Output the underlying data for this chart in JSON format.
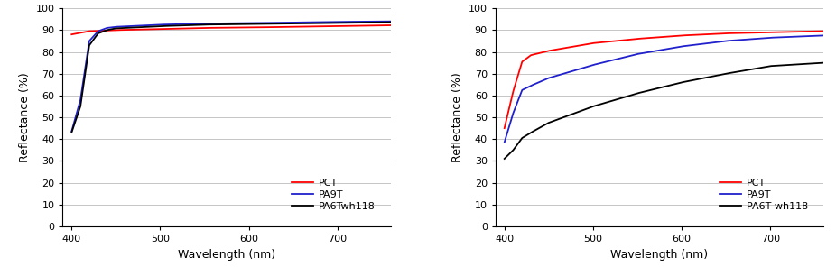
{
  "left_chart": {
    "xlabel": "Wavelength (nm)",
    "ylabel": "Reflectance (%)",
    "xlim": [
      390,
      760
    ],
    "ylim": [
      0,
      100
    ],
    "yticks": [
      0,
      10,
      20,
      30,
      40,
      50,
      60,
      70,
      80,
      90,
      100
    ],
    "xticks": [
      400,
      500,
      600,
      700
    ],
    "legend_labels": [
      "PCT",
      "PA9T",
      "PA6Twh118"
    ],
    "colors": [
      "#ff0000",
      "#2020cc",
      "#000000"
    ],
    "pct_points": [
      [
        400,
        88.0
      ],
      [
        420,
        89.5
      ],
      [
        450,
        90.0
      ],
      [
        500,
        90.5
      ],
      [
        550,
        91.0
      ],
      [
        600,
        91.2
      ],
      [
        650,
        91.5
      ],
      [
        700,
        91.8
      ],
      [
        760,
        92.2
      ]
    ],
    "pa9t_points": [
      [
        400,
        43.5
      ],
      [
        410,
        58.0
      ],
      [
        420,
        85.0
      ],
      [
        430,
        89.5
      ],
      [
        440,
        91.0
      ],
      [
        450,
        91.5
      ],
      [
        500,
        92.5
      ],
      [
        550,
        93.0
      ],
      [
        600,
        93.2
      ],
      [
        650,
        93.5
      ],
      [
        700,
        93.8
      ],
      [
        760,
        94.0
      ]
    ],
    "pa6t_points": [
      [
        400,
        43.0
      ],
      [
        410,
        55.0
      ],
      [
        420,
        83.0
      ],
      [
        430,
        88.5
      ],
      [
        440,
        90.0
      ],
      [
        450,
        90.8
      ],
      [
        500,
        91.8
      ],
      [
        550,
        92.5
      ],
      [
        600,
        92.8
      ],
      [
        650,
        93.0
      ],
      [
        700,
        93.3
      ],
      [
        760,
        93.6
      ]
    ]
  },
  "right_chart": {
    "xlabel": "Wavelength (nm)",
    "ylabel": "Reflectance (%)",
    "xlim": [
      390,
      760
    ],
    "ylim": [
      0,
      100
    ],
    "yticks": [
      0,
      10,
      20,
      30,
      40,
      50,
      60,
      70,
      80,
      90,
      100
    ],
    "xticks": [
      400,
      500,
      600,
      700
    ],
    "legend_labels": [
      "PCT",
      "PA9T",
      "PA6T wh118"
    ],
    "colors": [
      "#ff0000",
      "#2020cc",
      "#000000"
    ],
    "pct_points": [
      [
        400,
        45.0
      ],
      [
        410,
        62.0
      ],
      [
        420,
        75.5
      ],
      [
        430,
        78.5
      ],
      [
        450,
        80.5
      ],
      [
        500,
        84.0
      ],
      [
        550,
        86.0
      ],
      [
        600,
        87.5
      ],
      [
        650,
        88.5
      ],
      [
        700,
        89.0
      ],
      [
        760,
        89.5
      ]
    ],
    "pa9t_points": [
      [
        400,
        38.5
      ],
      [
        410,
        52.0
      ],
      [
        420,
        62.5
      ],
      [
        430,
        64.5
      ],
      [
        450,
        68.0
      ],
      [
        500,
        74.0
      ],
      [
        550,
        79.0
      ],
      [
        600,
        82.5
      ],
      [
        650,
        85.0
      ],
      [
        700,
        86.5
      ],
      [
        760,
        87.5
      ]
    ],
    "pa6t_points": [
      [
        400,
        31.0
      ],
      [
        410,
        35.0
      ],
      [
        420,
        40.5
      ],
      [
        430,
        43.0
      ],
      [
        450,
        47.5
      ],
      [
        500,
        55.0
      ],
      [
        550,
        61.0
      ],
      [
        600,
        66.0
      ],
      [
        650,
        70.0
      ],
      [
        700,
        73.5
      ],
      [
        760,
        75.0
      ]
    ]
  },
  "background_color": "#ffffff",
  "plot_bg_color": "#ffffff",
  "grid_color": "#bbbbbb",
  "font_size": 9,
  "line_width": 1.3
}
